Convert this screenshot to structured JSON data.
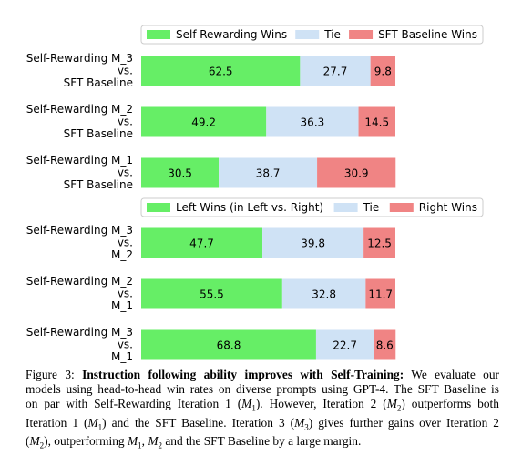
{
  "chart_data": [
    {
      "type": "stacked_barh",
      "legend": "top",
      "categories": [
        [
          "Self-Rewarding M_3",
          "vs.",
          "SFT Baseline"
        ],
        [
          "Self-Rewarding M_2",
          "vs.",
          "SFT Baseline"
        ],
        [
          "Self-Rewarding M_1",
          "vs.",
          "SFT Baseline"
        ]
      ],
      "xlim": [
        0,
        100
      ],
      "series": [
        {
          "name": "Self-Rewarding Wins",
          "color": "#66ee66",
          "values": [
            62.5,
            49.2,
            30.5
          ]
        },
        {
          "name": "Tie",
          "color": "#cfe2f5",
          "values": [
            27.7,
            36.3,
            38.7
          ]
        },
        {
          "name": "SFT Baseline Wins",
          "color": "#f08484",
          "values": [
            9.8,
            14.5,
            30.9
          ]
        }
      ]
    },
    {
      "type": "stacked_barh",
      "legend": "top",
      "categories": [
        [
          "Self-Rewarding M_3",
          "vs.",
          "M_2"
        ],
        [
          "Self-Rewarding M_2",
          "vs.",
          "M_1"
        ],
        [
          "Self-Rewarding M_3",
          "vs.",
          "M_1"
        ]
      ],
      "xlim": [
        0,
        100
      ],
      "series": [
        {
          "name": "Left Wins (in Left vs. Right)",
          "color": "#66ee66",
          "values": [
            47.7,
            55.5,
            68.8
          ]
        },
        {
          "name": "Tie",
          "color": "#cfe2f5",
          "values": [
            39.8,
            32.8,
            22.7
          ]
        },
        {
          "name": "Right Wins",
          "color": "#f08484",
          "values": [
            12.5,
            11.7,
            8.6
          ]
        }
      ]
    }
  ],
  "caption": {
    "lines": [
      [
        "Figure 3:  ",
        {
          "b": "Instruction following ability improves with Self-Training:"
        },
        " We evaluate our"
      ],
      [
        "models using head-to-head win rates on diverse prompts using GPT-4. The SFT Baseline is"
      ],
      [
        "on par with Self-Rewarding Iteration 1 (",
        {
          "i": "M",
          "sub": "1"
        },
        "). However, Iteration 2 (",
        {
          "i": "M",
          "sub": "2"
        },
        ") outperforms both"
      ],
      [
        "Iteration 1 (",
        {
          "i": "M",
          "sub": "1"
        },
        ") and the SFT Baseline. Iteration 3 (",
        {
          "i": "M",
          "sub": "3"
        },
        ") gives further gains over Iteration 2"
      ],
      [
        "(",
        {
          "i": "M",
          "sub": "2"
        },
        "), outperforming ",
        {
          "i": "M",
          "sub": "1"
        },
        ", ",
        {
          "i": "M",
          "sub": "2"
        },
        " and the SFT Baseline by a large margin."
      ]
    ]
  }
}
